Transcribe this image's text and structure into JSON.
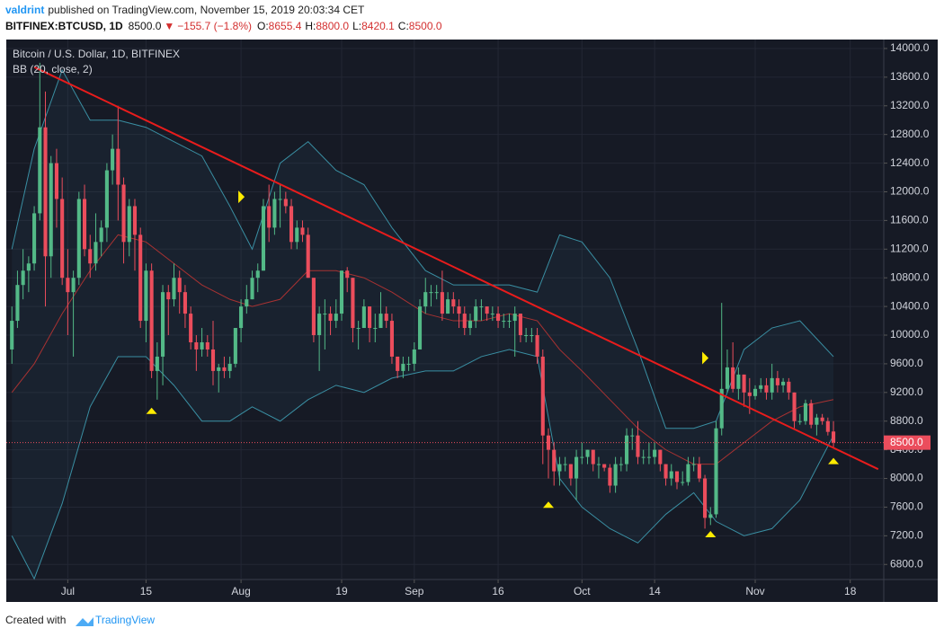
{
  "header": {
    "user": "valdrint",
    "published": "published on TradingView.com, November 15, 2019 20:03:34 CET",
    "symbol": "BITFINEX:BTCUSD, 1D",
    "price": "8500.0",
    "arrow": "▼",
    "change": "−155.7 (−1.8%)",
    "ohlc": [
      {
        "label": "O:",
        "value": "8655.4"
      },
      {
        "label": "H:",
        "value": "8800.0"
      },
      {
        "label": "L:",
        "value": "8420.1"
      },
      {
        "label": "C:",
        "value": "8500.0"
      }
    ]
  },
  "footer": {
    "text": "Created with",
    "brand": "TradingView"
  },
  "chart_data": {
    "type": "candlestick",
    "title": "Bitcoin / U.S. Dollar, 1D, BITFINEX",
    "indicator": "BB (20, close, 2)",
    "up_color": "#53b987",
    "down_color": "#eb4d5c",
    "grid": true,
    "xlim": [
      "06-20",
      "11-24"
    ],
    "ylim": [
      6590,
      14125
    ],
    "xticks": [
      {
        "value": "07-01",
        "label": "Jul"
      },
      {
        "value": "07-15",
        "label": "15"
      },
      {
        "value": "08-01",
        "label": "Aug"
      },
      {
        "value": "08-19",
        "label": "19"
      },
      {
        "value": "09-01",
        "label": "Sep"
      },
      {
        "value": "09-16",
        "label": "16"
      },
      {
        "value": "10-01",
        "label": "Oct"
      },
      {
        "value": "10-14",
        "label": "14"
      },
      {
        "value": "11-01",
        "label": "Nov"
      },
      {
        "value": "11-18",
        "label": "18"
      }
    ],
    "yticks": [
      {
        "value": 6800,
        "label": "6800.0"
      },
      {
        "value": 7200,
        "label": "7200.0"
      },
      {
        "value": 7600,
        "label": "7600.0"
      },
      {
        "value": 8000,
        "label": "8000.0"
      },
      {
        "value": 8400,
        "label": "8400.0"
      },
      {
        "value": 8800,
        "label": "8800.0"
      },
      {
        "value": 9200,
        "label": "9200.0"
      },
      {
        "value": 9600,
        "label": "9600.0"
      },
      {
        "value": 10000,
        "label": "10000.0"
      },
      {
        "value": 10400,
        "label": "10400.0"
      },
      {
        "value": 10800,
        "label": "10800.0"
      },
      {
        "value": 11200,
        "label": "11200.0"
      },
      {
        "value": 11600,
        "label": "11600.0"
      },
      {
        "value": 12000,
        "label": "12000.0"
      },
      {
        "value": 12400,
        "label": "12400.0"
      },
      {
        "value": 12800,
        "label": "12800.0"
      },
      {
        "value": 13200,
        "label": "13200.0"
      },
      {
        "value": 13600,
        "label": "13600.0"
      },
      {
        "value": 14000,
        "label": "14000.0"
      }
    ],
    "last_price": {
      "value": 8500,
      "label": "8500.0",
      "color": "#eb4d5c"
    },
    "categories": [
      "06-21",
      "06-22",
      "06-23",
      "06-24",
      "06-25",
      "06-26",
      "06-27",
      "06-28",
      "06-29",
      "06-30",
      "07-01",
      "07-02",
      "07-03",
      "07-04",
      "07-05",
      "07-06",
      "07-07",
      "07-08",
      "07-09",
      "07-10",
      "07-11",
      "07-12",
      "07-13",
      "07-14",
      "07-15",
      "07-16",
      "07-17",
      "07-18",
      "07-19",
      "07-20",
      "07-21",
      "07-22",
      "07-23",
      "07-24",
      "07-25",
      "07-26",
      "07-27",
      "07-28",
      "07-29",
      "07-30",
      "07-31",
      "08-01",
      "08-02",
      "08-03",
      "08-04",
      "08-05",
      "08-06",
      "08-07",
      "08-08",
      "08-09",
      "08-10",
      "08-11",
      "08-12",
      "08-13",
      "08-14",
      "08-15",
      "08-16",
      "08-17",
      "08-18",
      "08-19",
      "08-20",
      "08-21",
      "08-22",
      "08-23",
      "08-24",
      "08-25",
      "08-26",
      "08-27",
      "08-28",
      "08-29",
      "08-30",
      "08-31",
      "09-01",
      "09-02",
      "09-03",
      "09-04",
      "09-05",
      "09-06",
      "09-07",
      "09-08",
      "09-09",
      "09-10",
      "09-11",
      "09-12",
      "09-13",
      "09-14",
      "09-15",
      "09-16",
      "09-17",
      "09-18",
      "09-19",
      "09-20",
      "09-21",
      "09-22",
      "09-23",
      "09-24",
      "09-25",
      "09-26",
      "09-27",
      "09-28",
      "09-29",
      "09-30",
      "10-01",
      "10-02",
      "10-03",
      "10-04",
      "10-05",
      "10-06",
      "10-07",
      "10-08",
      "10-09",
      "10-10",
      "10-11",
      "10-12",
      "10-13",
      "10-14",
      "10-15",
      "10-16",
      "10-17",
      "10-18",
      "10-19",
      "10-20",
      "10-21",
      "10-22",
      "10-23",
      "10-24",
      "10-25",
      "10-26",
      "10-27",
      "10-28",
      "10-29",
      "10-30",
      "10-31",
      "11-01",
      "11-02",
      "11-03",
      "11-04",
      "11-05",
      "11-06",
      "11-07",
      "11-08",
      "11-09",
      "11-10",
      "11-11",
      "11-12",
      "11-13",
      "11-14",
      "11-15"
    ],
    "candles": [
      [
        9800,
        10400,
        9600,
        10200
      ],
      [
        10200,
        10900,
        10100,
        10700
      ],
      [
        10700,
        11200,
        10500,
        10900
      ],
      [
        10900,
        11100,
        10600,
        11000
      ],
      [
        11000,
        11800,
        10900,
        11700
      ],
      [
        11700,
        13800,
        11600,
        12900
      ],
      [
        12900,
        13400,
        10400,
        11100
      ],
      [
        11100,
        12500,
        10800,
        12400
      ],
      [
        12400,
        12600,
        11500,
        11900
      ],
      [
        11900,
        12200,
        10700,
        10800
      ],
      [
        10800,
        11200,
        10000,
        10600
      ],
      [
        10600,
        10900,
        9700,
        10800
      ],
      [
        10800,
        12000,
        10700,
        11900
      ],
      [
        11900,
        12100,
        11100,
        11200
      ],
      [
        11200,
        11400,
        10800,
        11000
      ],
      [
        11000,
        11700,
        10900,
        11300
      ],
      [
        11300,
        11600,
        11100,
        11500
      ],
      [
        11500,
        12400,
        11300,
        12300
      ],
      [
        12300,
        12800,
        12100,
        12600
      ],
      [
        12600,
        13200,
        11600,
        12100
      ],
      [
        12100,
        12200,
        11000,
        11300
      ],
      [
        11300,
        11900,
        11100,
        11800
      ],
      [
        11800,
        11900,
        10900,
        11400
      ],
      [
        11400,
        11500,
        10100,
        10200
      ],
      [
        10200,
        11000,
        9900,
        10900
      ],
      [
        10900,
        11000,
        9400,
        9500
      ],
      [
        9500,
        9900,
        9100,
        9700
      ],
      [
        9700,
        10700,
        9300,
        10600
      ],
      [
        10600,
        10700,
        10000,
        10500
      ],
      [
        10500,
        11000,
        10400,
        10800
      ],
      [
        10800,
        10900,
        10300,
        10600
      ],
      [
        10600,
        10700,
        10100,
        10300
      ],
      [
        10300,
        10400,
        9800,
        9900
      ],
      [
        9900,
        10000,
        9500,
        9800
      ],
      [
        9800,
        10100,
        9700,
        9900
      ],
      [
        9900,
        10000,
        9700,
        9800
      ],
      [
        9800,
        10200,
        9300,
        9500
      ],
      [
        9500,
        9600,
        9200,
        9550
      ],
      [
        9550,
        9700,
        9400,
        9500
      ],
      [
        9500,
        9700,
        9400,
        9600
      ],
      [
        9600,
        10100,
        9550,
        10100
      ],
      [
        10100,
        10500,
        9900,
        10400
      ],
      [
        10400,
        10700,
        10300,
        10500
      ],
      [
        10500,
        10900,
        10500,
        10800
      ],
      [
        10800,
        11000,
        10600,
        10900
      ],
      [
        10900,
        11900,
        10900,
        11800
      ],
      [
        11800,
        12100,
        11300,
        11500
      ],
      [
        11500,
        12000,
        11400,
        11900
      ],
      [
        11900,
        12100,
        11500,
        11900
      ],
      [
        11900,
        12000,
        11700,
        11800
      ],
      [
        11800,
        11900,
        11200,
        11300
      ],
      [
        11300,
        11600,
        11200,
        11500
      ],
      [
        11500,
        11600,
        11300,
        11400
      ],
      [
        11400,
        11500,
        10800,
        10800
      ],
      [
        10800,
        10800,
        9900,
        10000
      ],
      [
        10000,
        10400,
        9500,
        10300
      ],
      [
        10300,
        10500,
        9800,
        10300
      ],
      [
        10300,
        10400,
        10000,
        10200
      ],
      [
        10200,
        10500,
        10100,
        10300
      ],
      [
        10300,
        10900,
        10200,
        10900
      ],
      [
        10900,
        10950,
        10600,
        10800
      ],
      [
        10800,
        10800,
        9900,
        10100
      ],
      [
        10100,
        10200,
        9800,
        10100
      ],
      [
        10100,
        10500,
        10100,
        10400
      ],
      [
        10400,
        10400,
        9900,
        10100
      ],
      [
        10100,
        10300,
        9900,
        10100
      ],
      [
        10100,
        10600,
        10100,
        10300
      ],
      [
        10300,
        10400,
        10100,
        10200
      ],
      [
        10200,
        10300,
        9600,
        9700
      ],
      [
        9700,
        9700,
        9400,
        9500
      ],
      [
        9500,
        9700,
        9400,
        9600
      ],
      [
        9600,
        9700,
        9500,
        9600
      ],
      [
        9600,
        9900,
        9500,
        9800
      ],
      [
        9800,
        10500,
        9800,
        10400
      ],
      [
        10400,
        10800,
        10300,
        10600
      ],
      [
        10600,
        10700,
        10400,
        10600
      ],
      [
        10600,
        10700,
        10500,
        10600
      ],
      [
        10600,
        10900,
        10200,
        10300
      ],
      [
        10300,
        10600,
        10300,
        10500
      ],
      [
        10500,
        10600,
        10300,
        10400
      ],
      [
        10400,
        10500,
        10100,
        10300
      ],
      [
        10300,
        10400,
        10000,
        10100
      ],
      [
        10100,
        10300,
        10000,
        10200
      ],
      [
        10200,
        10500,
        10100,
        10400
      ],
      [
        10400,
        10500,
        10200,
        10400
      ],
      [
        10400,
        10400,
        10200,
        10300
      ],
      [
        10300,
        10400,
        10200,
        10300
      ],
      [
        10300,
        10400,
        10100,
        10200
      ],
      [
        10200,
        10300,
        10100,
        10200
      ],
      [
        10200,
        10300,
        10100,
        10200
      ],
      [
        10200,
        10400,
        9700,
        10300
      ],
      [
        10300,
        10300,
        9900,
        10000
      ],
      [
        10000,
        10100,
        9900,
        10000
      ],
      [
        10000,
        10100,
        9900,
        10000
      ],
      [
        10000,
        10100,
        9600,
        9700
      ],
      [
        9700,
        9800,
        8200,
        8600
      ],
      [
        8600,
        8700,
        8000,
        8400
      ],
      [
        8400,
        8500,
        7900,
        8100
      ],
      [
        8100,
        8300,
        7900,
        8200
      ],
      [
        8200,
        8300,
        8100,
        8200
      ],
      [
        8200,
        8200,
        7900,
        8000
      ],
      [
        8000,
        8400,
        7700,
        8300
      ],
      [
        8300,
        8500,
        8200,
        8300
      ],
      [
        8300,
        8400,
        8200,
        8400
      ],
      [
        8400,
        8400,
        8100,
        8200
      ],
      [
        8200,
        8300,
        8000,
        8200
      ],
      [
        8200,
        8200,
        8100,
        8150
      ],
      [
        8150,
        8200,
        7800,
        7900
      ],
      [
        7900,
        8300,
        7800,
        8200
      ],
      [
        8200,
        8300,
        8100,
        8200
      ],
      [
        8200,
        8700,
        8100,
        8600
      ],
      [
        8600,
        8700,
        8400,
        8600
      ],
      [
        8600,
        8800,
        8200,
        8300
      ],
      [
        8300,
        8400,
        8200,
        8300
      ],
      [
        8300,
        8500,
        8200,
        8300
      ],
      [
        8300,
        8500,
        8200,
        8400
      ],
      [
        8400,
        8400,
        8100,
        8200
      ],
      [
        8200,
        8200,
        7900,
        8000
      ],
      [
        8000,
        8200,
        7900,
        8100
      ],
      [
        8100,
        8100,
        7850,
        7950
      ],
      [
        7950,
        8100,
        7900,
        7950
      ],
      [
        7950,
        8300,
        7900,
        8200
      ],
      [
        8200,
        8300,
        8100,
        8200
      ],
      [
        8200,
        8300,
        7950,
        8000
      ],
      [
        8000,
        8050,
        7300,
        7450
      ],
      [
        7450,
        7600,
        7350,
        7500
      ],
      [
        7500,
        8800,
        7450,
        8700
      ],
      [
        8700,
        10450,
        8600,
        9250
      ],
      [
        9250,
        9800,
        9200,
        9550
      ],
      [
        9550,
        9900,
        9200,
        9250
      ],
      [
        9250,
        9550,
        9100,
        9450
      ],
      [
        9450,
        9450,
        9000,
        9200
      ],
      [
        9200,
        9400,
        8900,
        9150
      ],
      [
        9150,
        9300,
        9100,
        9250
      ],
      [
        9250,
        9400,
        9200,
        9300
      ],
      [
        9300,
        9400,
        9100,
        9200
      ],
      [
        9200,
        9600,
        9100,
        9400
      ],
      [
        9400,
        9500,
        9200,
        9300
      ],
      [
        9300,
        9400,
        9200,
        9350
      ],
      [
        9350,
        9400,
        9100,
        9200
      ],
      [
        9200,
        9200,
        8700,
        8800
      ],
      [
        8800,
        8900,
        8750,
        8800
      ],
      [
        8800,
        9100,
        8750,
        9050
      ],
      [
        9050,
        9100,
        8700,
        8750
      ],
      [
        8750,
        8900,
        8600,
        8850
      ],
      [
        8850,
        8900,
        8750,
        8800
      ],
      [
        8800,
        8850,
        8600,
        8650
      ],
      [
        8655.4,
        8800,
        8420.1,
        8500
      ]
    ],
    "bb": {
      "band_color": "#3a8fa3",
      "mid_color": "#a83232",
      "x": [
        "06-21",
        "06-25",
        "06-30",
        "07-05",
        "07-10",
        "07-15",
        "07-20",
        "07-25",
        "07-30",
        "08-03",
        "08-08",
        "08-13",
        "08-18",
        "08-23",
        "08-28",
        "09-03",
        "09-08",
        "09-13",
        "09-18",
        "09-23",
        "09-27",
        "10-01",
        "10-06",
        "10-11",
        "10-16",
        "10-21",
        "10-25",
        "10-30",
        "11-04",
        "11-09",
        "11-15"
      ],
      "upper": [
        11200,
        12600,
        13700,
        13000,
        13000,
        12900,
        12700,
        12500,
        11800,
        11200,
        12400,
        12700,
        12300,
        12100,
        11500,
        10900,
        10700,
        10700,
        10700,
        10600,
        11400,
        11300,
        10800,
        9800,
        8700,
        8700,
        8800,
        9800,
        10100,
        10200,
        9700
      ],
      "middle": [
        9200,
        9600,
        10300,
        10900,
        11400,
        11300,
        11000,
        10700,
        10500,
        10400,
        10500,
        10900,
        10900,
        10800,
        10600,
        10300,
        10200,
        10200,
        10300,
        10200,
        9800,
        9500,
        9100,
        8700,
        8400,
        8200,
        8200,
        8500,
        8800,
        9000,
        9100
      ],
      "lower": [
        7200,
        6600,
        7650,
        9000,
        9700,
        9700,
        9300,
        8800,
        8800,
        9000,
        8800,
        9100,
        9300,
        9200,
        9400,
        9500,
        9500,
        9700,
        9800,
        9700,
        8000,
        7600,
        7300,
        7100,
        7500,
        7800,
        7400,
        7200,
        7300,
        7700,
        8600
      ]
    },
    "trendline": {
      "x": [
        "06-25",
        "11-23"
      ],
      "y": [
        13740,
        8130
      ],
      "color": "#e81c1c"
    },
    "markers": {
      "color": "#ffeb00",
      "items": [
        {
          "x": "07-16",
          "y": 8950,
          "shape": "up"
        },
        {
          "x": "09-25",
          "y": 7640,
          "shape": "up"
        },
        {
          "x": "10-24",
          "y": 7230,
          "shape": "up"
        },
        {
          "x": "11-15",
          "y": 8250,
          "shape": "up"
        },
        {
          "x": "08-01",
          "y": 11930,
          "shape": "right"
        },
        {
          "x": "10-23",
          "y": 9680,
          "shape": "right"
        }
      ]
    }
  }
}
